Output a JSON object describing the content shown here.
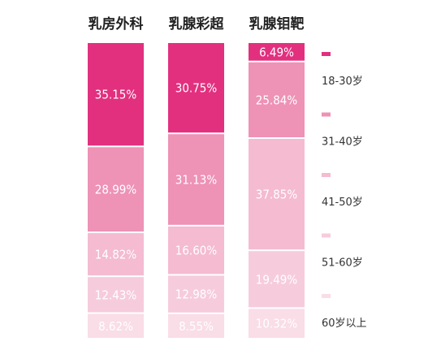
{
  "chart_data": {
    "type": "bar",
    "stacked": true,
    "normalized": "percent",
    "categories": [
      "乳房外科",
      "乳腺彩超",
      "乳腺钼靶"
    ],
    "series": [
      {
        "name": "18-30岁",
        "color": "#e2307f",
        "values": [
          35.15,
          30.75,
          6.49
        ],
        "labels": [
          "35.15%",
          "30.75%",
          "6.49%"
        ]
      },
      {
        "name": "31-40岁",
        "color": "#ee92b6",
        "values": [
          28.99,
          31.13,
          25.84
        ],
        "labels": [
          "28.99%",
          "31.13%",
          "25.84%"
        ]
      },
      {
        "name": "41-50岁",
        "color": "#f4bbd1",
        "values": [
          14.82,
          16.6,
          37.85
        ],
        "labels": [
          "14.82%",
          "16.60%",
          "37.85%"
        ]
      },
      {
        "name": "51-60岁",
        "color": "#f6ccdc",
        "values": [
          12.43,
          12.98,
          19.49
        ],
        "labels": [
          "12.43%",
          "12.98%",
          "19.49%"
        ]
      },
      {
        "name": "60岁以上",
        "color": "#f9dde7",
        "values": [
          8.62,
          8.55,
          10.32
        ],
        "labels": [
          "8.62%",
          "8.55%",
          "10.32%"
        ]
      }
    ],
    "ylim": [
      0,
      100
    ],
    "legend_position": "right",
    "grid": false,
    "title": "",
    "xlabel": "",
    "ylabel": ""
  }
}
